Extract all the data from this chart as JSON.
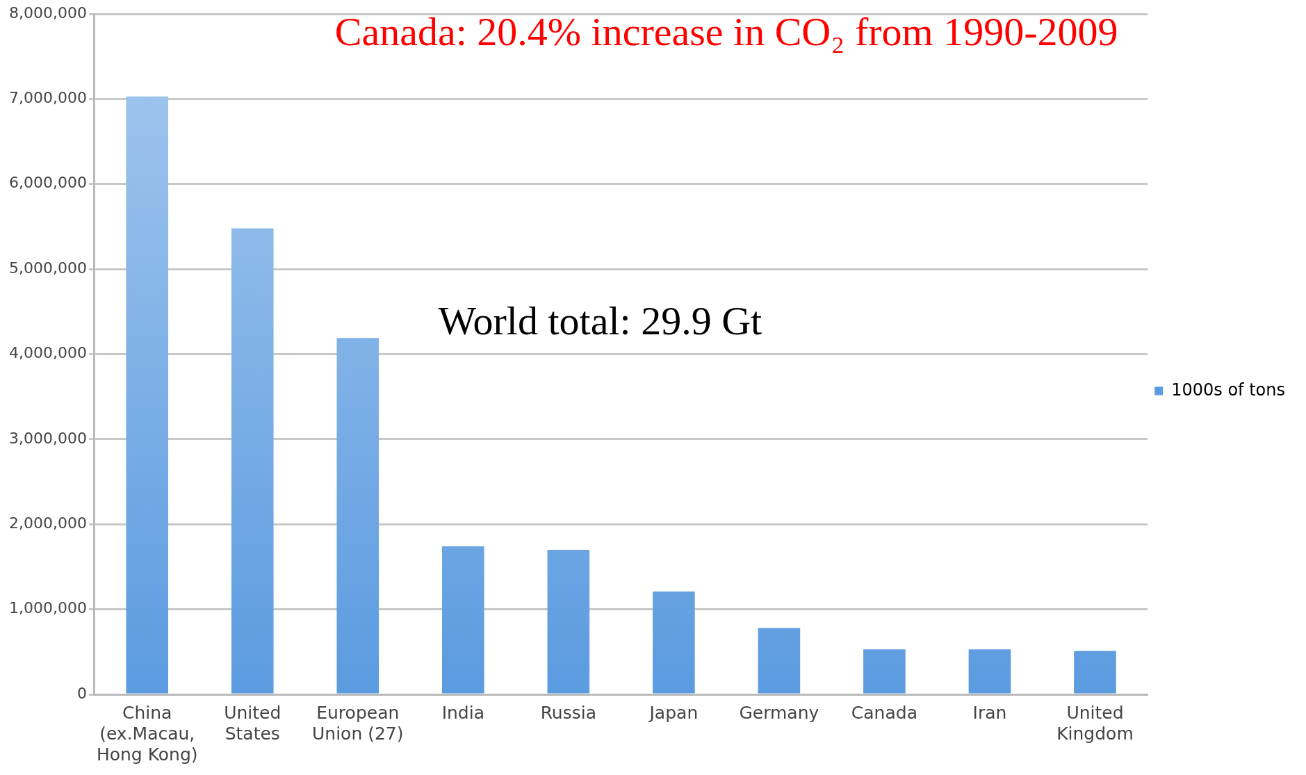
{
  "chart_data": {
    "type": "bar",
    "title": "Canada: 20.4% increase in CO₂ from 1990-2009",
    "annotations": [
      "World total: 29.9 Gt"
    ],
    "categories": [
      "China (ex.Macau, Hong Kong)",
      "United States",
      "European Union (27)",
      "India",
      "Russia",
      "Japan",
      "Germany",
      "Canada",
      "Iran",
      "United Kingdom"
    ],
    "series": [
      {
        "name": "1000s of tons",
        "color": "#5b9be0",
        "values": [
          7030000,
          5480000,
          4190000,
          1740000,
          1700000,
          1210000,
          780000,
          530000,
          530000,
          510000
        ]
      }
    ],
    "ylim": [
      0,
      8000000
    ],
    "yticks": [
      {
        "value": 0,
        "label": "0"
      },
      {
        "value": 1000000,
        "label": "1,000,000"
      },
      {
        "value": 2000000,
        "label": "2,000,000"
      },
      {
        "value": 3000000,
        "label": "3,000,000"
      },
      {
        "value": 4000000,
        "label": "4,000,000"
      },
      {
        "value": 5000000,
        "label": "5,000,000"
      },
      {
        "value": 6000000,
        "label": "6,000,000"
      },
      {
        "value": 7000000,
        "label": "7,000,000"
      },
      {
        "value": 8000000,
        "label": "8,000,000"
      }
    ],
    "grid": "y",
    "legend": "right"
  }
}
